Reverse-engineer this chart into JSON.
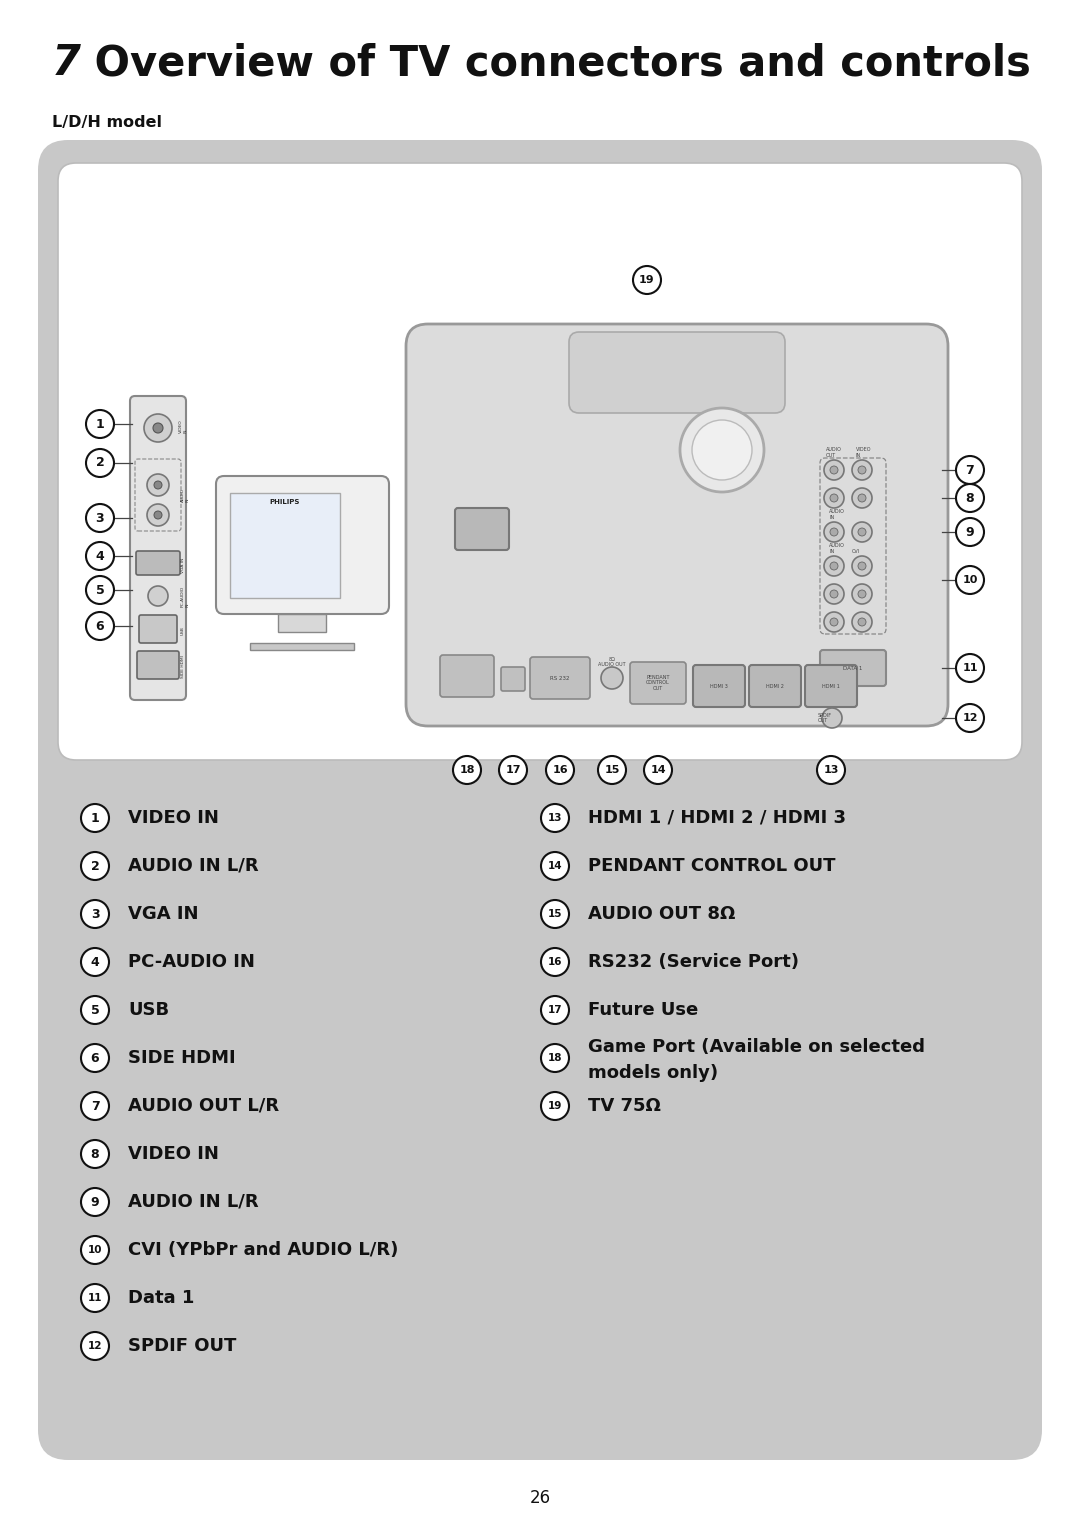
{
  "title_number": "7",
  "title_text": "  Overview of TV connectors and controls",
  "subtitle": "L/D/H model",
  "page_number": "26",
  "bg_color": "#ffffff",
  "panel_color": "#c8c8c8",
  "inner_bg": "#ffffff",
  "text_color": "#111111",
  "left_items": [
    {
      "num": "1",
      "text": "VIDEO IN",
      "bold": false
    },
    {
      "num": "2",
      "text": "AUDIO IN L/R",
      "bold": false
    },
    {
      "num": "3",
      "text": "VGA IN",
      "bold": false
    },
    {
      "num": "4",
      "text": "PC-AUDIO IN",
      "bold": false
    },
    {
      "num": "5",
      "text": "USB",
      "bold": false
    },
    {
      "num": "6",
      "text": "SIDE HDMI",
      "bold": false
    },
    {
      "num": "7",
      "text": "AUDIO OUT L/R",
      "bold": false
    },
    {
      "num": "8",
      "text": "VIDEO IN",
      "bold": false
    },
    {
      "num": "9",
      "text": "AUDIO IN L/R",
      "bold": false
    },
    {
      "num": "10",
      "text": "CVI (YPbPr and AUDIO L/R)",
      "bold": false
    },
    {
      "num": "11",
      "text": "Data 1",
      "bold": false
    },
    {
      "num": "12",
      "text": "SPDIF OUT",
      "bold": false
    }
  ],
  "right_items": [
    {
      "num": "13",
      "text": "HDMI 1 / HDMI 2 / HDMI 3",
      "bold": false
    },
    {
      "num": "14",
      "text": "PENDANT CONTROL OUT",
      "bold": false
    },
    {
      "num": "15",
      "text": "AUDIO OUT 8Ω",
      "bold": false
    },
    {
      "num": "16",
      "text": "RS232 (Service Port)",
      "bold": false
    },
    {
      "num": "17",
      "text": "Future Use",
      "bold": false
    },
    {
      "num": "18",
      "text": "Game Port (Available on selected\nmodels only)",
      "bold": false
    },
    {
      "num": "19",
      "text": "TV 75Ω",
      "bold": false
    }
  ]
}
